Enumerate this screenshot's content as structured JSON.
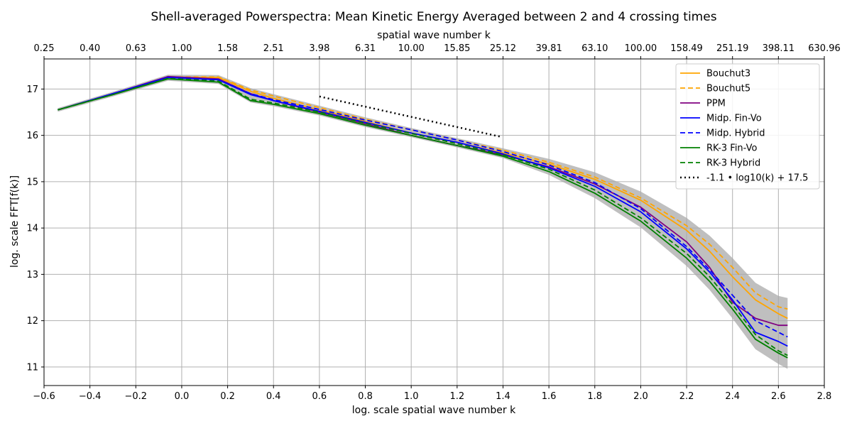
{
  "chart_data": {
    "type": "line",
    "title": "Shell-averaged Powerspectra: Mean Kinetic Energy Averaged between 2 and 4 crossing times",
    "xlabel": "log. scale spatial wave number k",
    "xlabel_top": "spatial wave number k",
    "ylabel": "log. scale FFT[f(k)]",
    "xlim": [
      -0.6,
      2.8
    ],
    "ylim": [
      10.6,
      17.65
    ],
    "grid": true,
    "legend_position": "top-right",
    "x_ticks": [
      -0.6,
      -0.4,
      -0.2,
      0.0,
      0.2,
      0.4,
      0.6,
      0.8,
      1.0,
      1.2,
      1.4,
      1.6,
      1.8,
      2.0,
      2.2,
      2.4,
      2.6,
      2.8
    ],
    "x_tick_labels": [
      "−0.6",
      "−0.4",
      "−0.2",
      "0.0",
      "0.2",
      "0.4",
      "0.6",
      "0.8",
      "1.0",
      "1.2",
      "1.4",
      "1.6",
      "1.8",
      "2.0",
      "2.2",
      "2.4",
      "2.6",
      "2.8"
    ],
    "y_ticks": [
      11,
      12,
      13,
      14,
      15,
      16,
      17
    ],
    "y_tick_labels": [
      "11",
      "12",
      "13",
      "14",
      "15",
      "16",
      "17"
    ],
    "top_ticks": [
      -0.6,
      -0.4,
      -0.2,
      0.0,
      0.2,
      0.4,
      0.6,
      0.8,
      1.0,
      1.2,
      1.4,
      1.6,
      1.8,
      2.0,
      2.2,
      2.4,
      2.6,
      2.8
    ],
    "top_tick_labels": [
      "0.25",
      "0.40",
      "0.63",
      "1.00",
      "1.58",
      "2.51",
      "3.98",
      "6.31",
      "10.00",
      "15.85",
      "25.12",
      "39.81",
      "63.10",
      "100.00",
      "158.49",
      "251.19",
      "398.11",
      "630.96"
    ],
    "x": [
      -0.54,
      -0.3,
      -0.06,
      0.16,
      0.3,
      0.4,
      0.6,
      0.8,
      1.0,
      1.2,
      1.4,
      1.6,
      1.8,
      2.0,
      2.2,
      2.3,
      2.4,
      2.5,
      2.6,
      2.64
    ],
    "series": [
      {
        "name": "Bouchut3",
        "color": "#ffa500",
        "dash": "solid",
        "values": [
          16.55,
          16.9,
          17.25,
          17.25,
          16.95,
          16.8,
          16.55,
          16.3,
          16.05,
          15.85,
          15.62,
          15.38,
          15.05,
          14.6,
          13.95,
          13.5,
          12.95,
          12.45,
          12.15,
          12.05
        ]
      },
      {
        "name": "Bouchut5",
        "color": "#ffa500",
        "dash": "dashed",
        "values": [
          16.55,
          16.9,
          17.26,
          17.26,
          16.98,
          16.85,
          16.6,
          16.35,
          16.12,
          15.9,
          15.68,
          15.42,
          15.1,
          14.65,
          14.05,
          13.65,
          13.15,
          12.6,
          12.3,
          12.25
        ]
      },
      {
        "name": "PPM",
        "color": "#800080",
        "dash": "solid",
        "values": [
          16.55,
          16.9,
          17.27,
          17.22,
          16.9,
          16.75,
          16.5,
          16.25,
          16.0,
          15.78,
          15.58,
          15.32,
          14.95,
          14.45,
          13.7,
          13.15,
          12.4,
          12.05,
          11.9,
          11.9
        ]
      },
      {
        "name": "Midp. Fin-Vo",
        "color": "#0000ff",
        "dash": "solid",
        "values": [
          16.55,
          16.9,
          17.25,
          17.2,
          16.88,
          16.75,
          16.52,
          16.28,
          16.05,
          15.85,
          15.6,
          15.3,
          14.9,
          14.35,
          13.55,
          13.05,
          12.45,
          11.75,
          11.55,
          11.45
        ]
      },
      {
        "name": "Midp. Hybrid",
        "color": "#0000ff",
        "dash": "dashed",
        "values": [
          16.55,
          16.9,
          17.25,
          17.2,
          16.9,
          16.77,
          16.56,
          16.33,
          16.12,
          15.9,
          15.65,
          15.36,
          14.98,
          14.42,
          13.6,
          13.1,
          12.55,
          12.0,
          11.75,
          11.65
        ]
      },
      {
        "name": "RK-3  Fin-Vo",
        "color": "#008000",
        "dash": "solid",
        "values": [
          16.55,
          16.88,
          17.22,
          17.15,
          16.75,
          16.67,
          16.47,
          16.22,
          16.0,
          15.78,
          15.55,
          15.22,
          14.75,
          14.15,
          13.35,
          12.85,
          12.25,
          11.6,
          11.3,
          11.2
        ]
      },
      {
        "name": "RK-3  Hybrid",
        "color": "#008000",
        "dash": "dashed",
        "values": [
          16.55,
          16.88,
          17.23,
          17.17,
          16.78,
          16.7,
          16.5,
          16.26,
          16.04,
          15.82,
          15.58,
          15.27,
          14.82,
          14.22,
          13.45,
          12.95,
          12.35,
          11.7,
          11.35,
          11.25
        ]
      },
      {
        "name": "-1.1 • log10(k) + 17.5",
        "color": "#000000",
        "dash": "dotted",
        "x": [
          0.6,
          1.39
        ],
        "values": [
          16.84,
          15.97
        ]
      }
    ]
  }
}
